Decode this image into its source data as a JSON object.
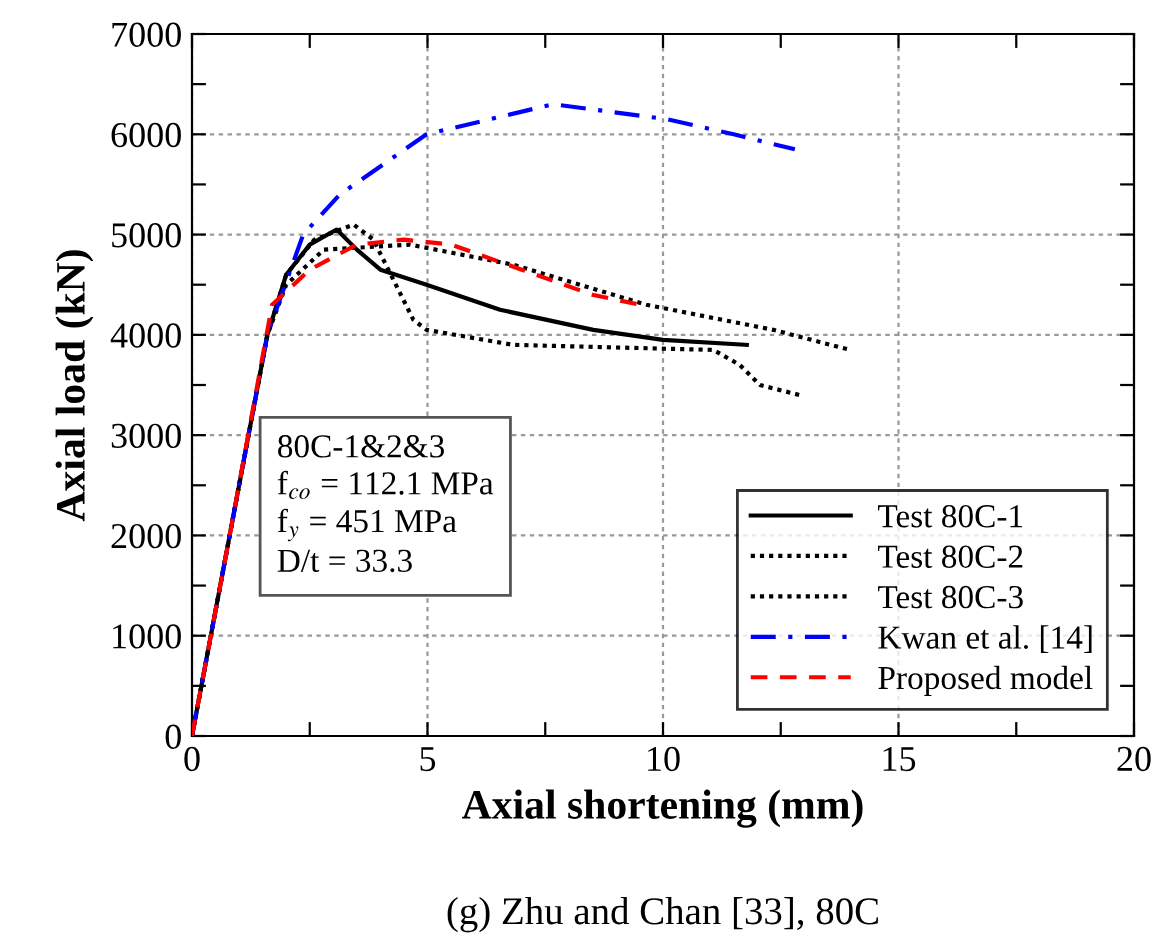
{
  "chart_data": {
    "type": "line",
    "xlabel": "Axial shortening (mm)",
    "ylabel": "Axial load (kN)",
    "xlim": [
      0,
      20
    ],
    "ylim": [
      0,
      7000
    ],
    "xticks": [
      0,
      {
        "value": 2.5,
        "label": null
      },
      5,
      {
        "value": 7.5,
        "label": null
      },
      10,
      {
        "value": 12.5,
        "label": null
      },
      15,
      {
        "value": 17.5,
        "label": null
      },
      20
    ],
    "yticks": [
      0,
      {
        "value": 500,
        "label": null
      },
      1000,
      {
        "value": 1500,
        "label": null
      },
      2000,
      {
        "value": 2500,
        "label": null
      },
      3000,
      {
        "value": 3500,
        "label": null
      },
      4000,
      {
        "value": 4500,
        "label": null
      },
      5000,
      {
        "value": 5500,
        "label": null
      },
      6000,
      {
        "value": 6500,
        "label": null
      },
      7000
    ],
    "grid": true,
    "legend": "bottom right",
    "marker": "none",
    "series": [
      {
        "name": "Test 80C-1",
        "color": "#000000",
        "line_style": "solid",
        "x": [
          0,
          0.8,
          1.6,
          2.0,
          2.5,
          3.07,
          3.5,
          4.0,
          4.98,
          6.54,
          8.52,
          10.0,
          11.78
        ],
        "values": [
          0,
          2000,
          4000,
          4600,
          4900,
          5050,
          4850,
          4650,
          4500,
          4250,
          4050,
          3950,
          3900
        ]
      },
      {
        "name": "Test 80C-2",
        "color": "#000000",
        "line_style": "dotted",
        "x": [
          0,
          0.8,
          1.6,
          2.0,
          2.6,
          3.43,
          3.85,
          4.7,
          4.98,
          6.82,
          11.07,
          11.63,
          12.06,
          12.9
        ],
        "values": [
          0,
          2000,
          4000,
          4600,
          4950,
          5100,
          4950,
          4150,
          4050,
          3900,
          3850,
          3700,
          3500,
          3400
        ]
      },
      {
        "name": "Test 80C-3",
        "color": "#000000",
        "line_style": "dotted",
        "x": [
          0,
          0.8,
          1.6,
          2.0,
          2.8,
          4.63,
          6.82,
          9.65,
          12.34,
          13.97
        ],
        "values": [
          0,
          2000,
          4000,
          4500,
          4850,
          4900,
          4700,
          4300,
          4050,
          3850
        ]
      },
      {
        "name": "Kwan et al. [14]",
        "color": "#0000ff",
        "line_style": "dashdot",
        "x": [
          0,
          0.8,
          1.6,
          2.36,
          3.14,
          4.98,
          7.67,
          10.08,
          11.5,
          12.8
        ],
        "values": [
          0,
          2000,
          4000,
          5000,
          5400,
          6000,
          6300,
          6150,
          6000,
          5850
        ]
      },
      {
        "name": "Proposed model",
        "color": "#ff0000",
        "line_style": "dashed",
        "x": [
          0,
          0.8,
          1.7,
          2.5,
          3.5,
          4.5,
          5.5,
          7.0,
          8.5,
          9.51
        ],
        "values": [
          0,
          2000,
          4300,
          4650,
          4900,
          4950,
          4900,
          4650,
          4400,
          4300
        ]
      }
    ],
    "annotations": [
      "80C-1&2&3",
      "f$_{co}$ = 112.1 MPa",
      "f$_{y}$ = 451 MPa",
      "D/t = 33.3",
      "(g) Zhu and Chan [33], 80C"
    ]
  }
}
